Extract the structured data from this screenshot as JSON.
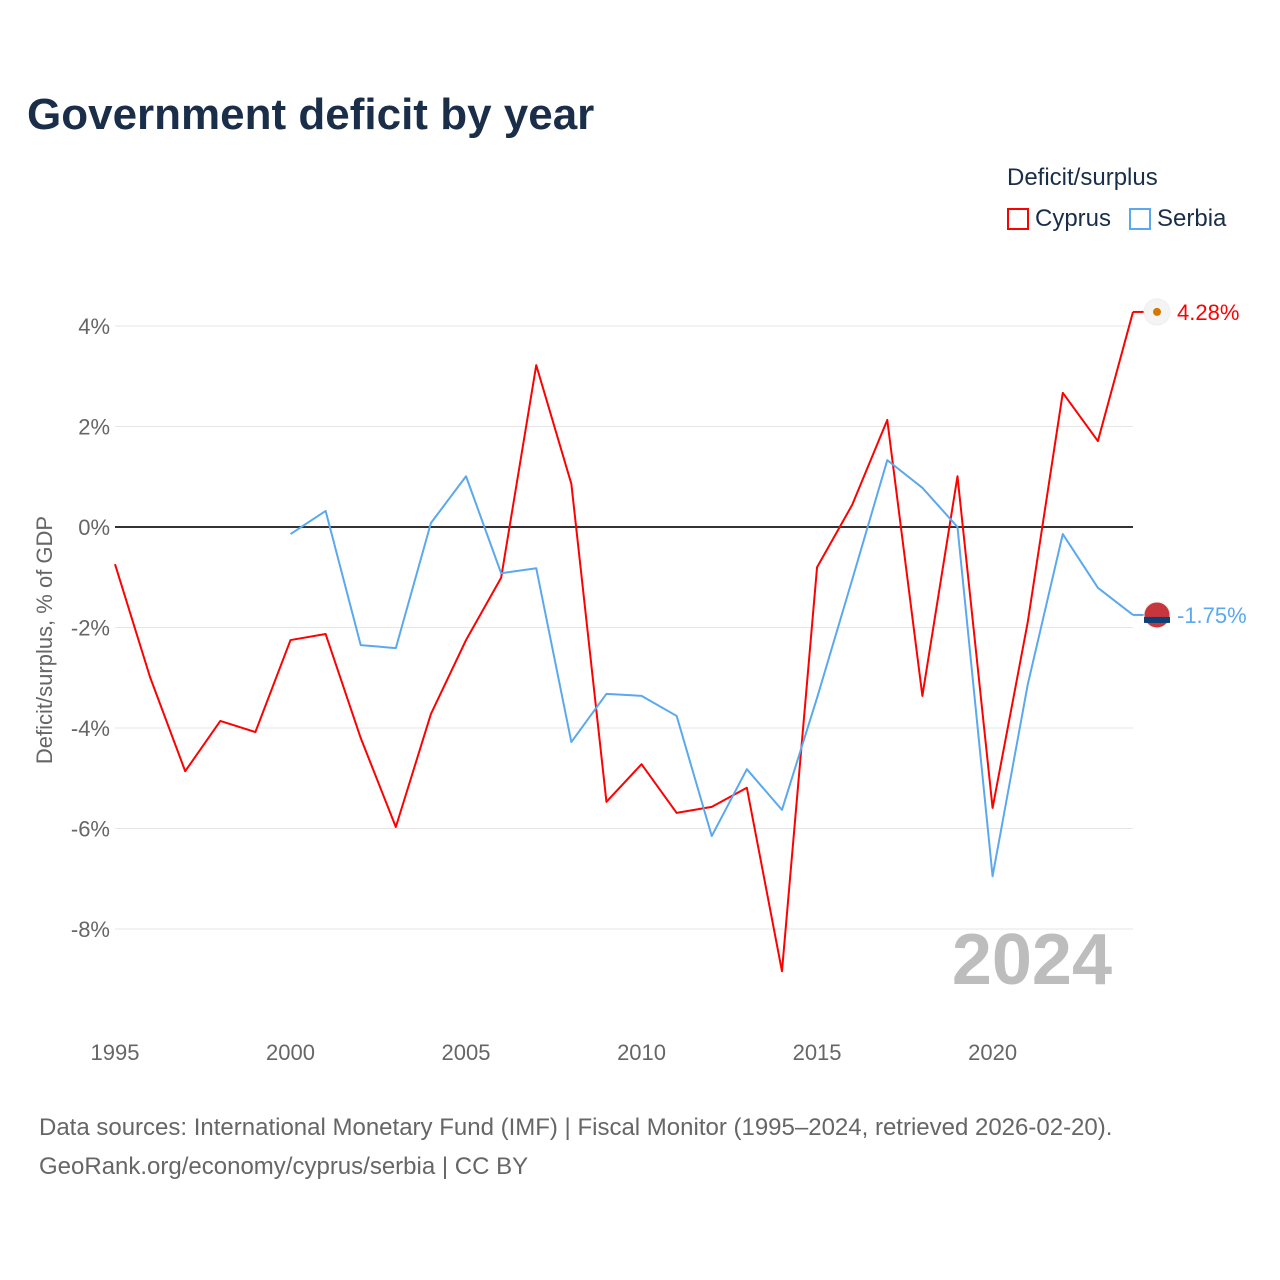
{
  "title": "Government deficit by year",
  "legend": {
    "title": "Deficit/surplus",
    "items": [
      {
        "name": "Cyprus",
        "color": "#ff0000"
      },
      {
        "name": "Serbia",
        "color": "#5aa9ee"
      }
    ]
  },
  "source": {
    "line1": "Data sources: International Monetary Fund (IMF) | Fiscal Monitor (1995–2024, retrieved 2026-02-20).",
    "line2": "GeoRank.org/economy/cyprus/serbia | CC BY"
  },
  "chart_data": {
    "type": "line",
    "title": "Government deficit by year",
    "ylabel": "Deficit/surplus, % of GDP",
    "xlabel": "",
    "xlim": [
      1995,
      2024
    ],
    "ylim": [
      -9.5,
      4.5
    ],
    "x_ticks": [
      1995,
      2000,
      2005,
      2010,
      2015,
      2020
    ],
    "y_ticks": [
      4,
      2,
      0,
      -2,
      -4,
      -6,
      -8
    ],
    "y_tick_labels": [
      "4%",
      "2%",
      "0%",
      "-2%",
      "-4%",
      "-6%",
      "-8%"
    ],
    "watermark_year": "2024",
    "grid": true,
    "legend_position": "top-right",
    "series": [
      {
        "name": "Cyprus",
        "color": "#ff0000",
        "end_label": "4.28%",
        "x": [
          1995,
          1996,
          1997,
          1998,
          1999,
          2000,
          2001,
          2002,
          2003,
          2004,
          2005,
          2006,
          2007,
          2008,
          2009,
          2010,
          2011,
          2012,
          2013,
          2014,
          2015,
          2016,
          2017,
          2018,
          2019,
          2020,
          2021,
          2022,
          2023,
          2024
        ],
        "values": [
          -0.74,
          -2.99,
          -4.86,
          -3.86,
          -4.08,
          -2.25,
          -2.13,
          -4.2,
          -5.97,
          -3.72,
          -2.25,
          -1.01,
          3.22,
          0.86,
          -5.47,
          -4.72,
          -5.69,
          -5.57,
          -5.19,
          -8.84,
          -0.8,
          0.44,
          2.13,
          -3.36,
          1.01,
          -5.59,
          -1.9,
          2.67,
          1.71,
          4.28
        ]
      },
      {
        "name": "Serbia",
        "color": "#5aa9ee",
        "end_label": "-1.75%",
        "x": [
          2000,
          2001,
          2002,
          2003,
          2004,
          2005,
          2006,
          2007,
          2008,
          2009,
          2010,
          2011,
          2012,
          2013,
          2014,
          2015,
          2016,
          2017,
          2018,
          2019,
          2020,
          2021,
          2022,
          2023,
          2024
        ],
        "values": [
          -0.14,
          0.32,
          -2.35,
          -2.41,
          0.08,
          1.01,
          -0.92,
          -0.82,
          -4.28,
          -3.32,
          -3.36,
          -3.76,
          -6.15,
          -4.82,
          -5.63,
          -3.4,
          -1.05,
          1.33,
          0.78,
          0.0,
          -6.95,
          -3.14,
          -0.14,
          -1.21,
          -1.75
        ]
      }
    ]
  }
}
